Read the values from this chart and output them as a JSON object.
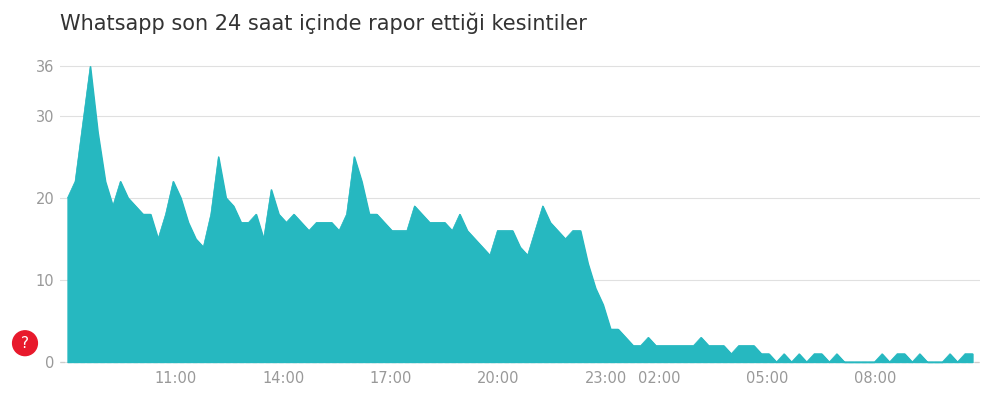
{
  "title": "Whatsapp son 24 saat içinde rapor ettiği kesintiler",
  "fill_color": "#26B8C0",
  "background_color": "#ffffff",
  "yticks": [
    0,
    10,
    20,
    30,
    36
  ],
  "xtick_labels": [
    "11:00",
    "14:00",
    "17:00",
    "20:00",
    "23:00",
    "02:00",
    "05:00",
    "08:00"
  ],
  "ylim": [
    -0.5,
    38
  ],
  "title_fontsize": 15,
  "x": [
    0,
    1,
    2,
    3,
    4,
    5,
    6,
    7,
    8,
    9,
    10,
    11,
    12,
    13,
    14,
    15,
    16,
    17,
    18,
    19,
    20,
    21,
    22,
    23,
    24,
    25,
    26,
    27,
    28,
    29,
    30,
    31,
    32,
    33,
    34,
    35,
    36,
    37,
    38,
    39,
    40,
    41,
    42,
    43,
    44,
    45,
    46,
    47,
    48,
    49,
    50,
    51,
    52,
    53,
    54,
    55,
    56,
    57,
    58,
    59,
    60,
    61,
    62,
    63,
    64,
    65,
    66,
    67,
    68,
    69,
    70,
    71,
    72,
    73,
    74,
    75,
    76,
    77,
    78,
    79,
    80,
    81,
    82,
    83,
    84,
    85,
    86,
    87,
    88,
    89,
    90,
    91,
    92,
    93,
    94,
    95,
    96,
    97,
    98,
    99,
    100,
    101,
    102,
    103,
    104,
    105,
    106,
    107,
    108,
    109,
    110,
    111,
    112,
    113,
    114,
    115,
    116,
    117,
    118,
    119,
    120
  ],
  "y": [
    20,
    22,
    29,
    36,
    28,
    22,
    19,
    22,
    20,
    19,
    18,
    18,
    15,
    18,
    22,
    20,
    17,
    15,
    14,
    18,
    25,
    20,
    19,
    17,
    17,
    18,
    15,
    21,
    18,
    17,
    18,
    17,
    16,
    17,
    17,
    17,
    16,
    18,
    25,
    22,
    18,
    18,
    17,
    16,
    16,
    16,
    19,
    18,
    17,
    17,
    17,
    16,
    18,
    16,
    15,
    14,
    13,
    16,
    16,
    16,
    14,
    13,
    16,
    19,
    17,
    16,
    15,
    16,
    16,
    12,
    9,
    7,
    4,
    4,
    3,
    2,
    2,
    3,
    2,
    2,
    2,
    2,
    2,
    2,
    3,
    2,
    2,
    2,
    1,
    2,
    2,
    2,
    1,
    1,
    0,
    1,
    0,
    1,
    0,
    1,
    1,
    0,
    1,
    0,
    0,
    0,
    0,
    0,
    1,
    0,
    1,
    1,
    0,
    1,
    0,
    0,
    0,
    1,
    0,
    1,
    1
  ],
  "xtick_positions": [
    14.3,
    28.6,
    42.9,
    57.1,
    71.4,
    78.5,
    92.8,
    107.1
  ],
  "grid_color": "#e0e0e0",
  "axis_color": "#999999",
  "question_mark_color": "#e8192c",
  "zero_line_color": "#cccccc"
}
